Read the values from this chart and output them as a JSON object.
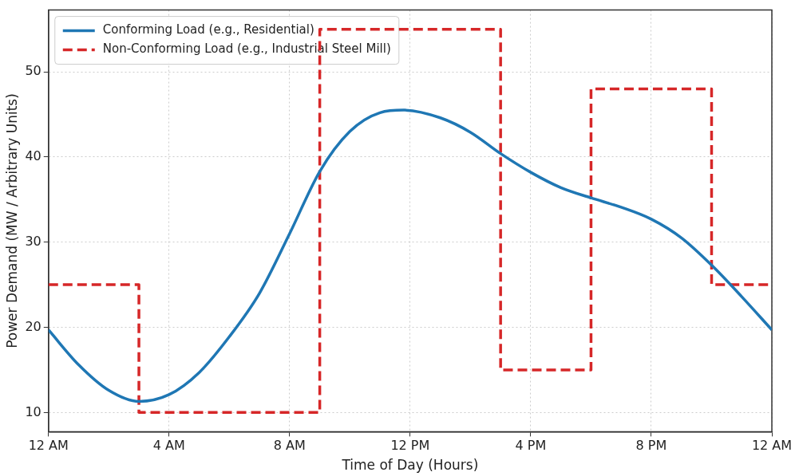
{
  "chart_data": {
    "type": "line",
    "xlabel": "Time of Day (Hours)",
    "ylabel": "Power Demand (MW / Arbitrary Units)",
    "xlim": [
      "--01-01T00:00",
      "--01-02T00:00"
    ],
    "xticks": [
      {
        "value": "--01-01T00:00",
        "label": "12 AM"
      },
      {
        "value": "--01-01T04:00",
        "label": "4 AM"
      },
      {
        "value": "--01-01T08:00",
        "label": "8 AM"
      },
      {
        "value": "--01-01T12:00",
        "label": "12 PM"
      },
      {
        "value": "--01-01T16:00",
        "label": "4 PM"
      },
      {
        "value": "--01-01T20:00",
        "label": "8 PM"
      },
      {
        "value": "--01-02T00:00",
        "label": "12 AM"
      }
    ],
    "ylim": [
      7.75,
      57.25
    ],
    "yticks": [
      10,
      20,
      30,
      40,
      50
    ],
    "grid": true,
    "legend": "top left",
    "series": [
      {
        "name": "Conforming Load (e.g., Residential)",
        "color": "#1f77b4",
        "type": "line",
        "line_style": "solid",
        "x": [
          "--01-01T00:00",
          "--01-01T01:00",
          "--01-01T02:00",
          "--01-01T03:00",
          "--01-01T04:00",
          "--01-01T05:00",
          "--01-01T06:00",
          "--01-01T07:00",
          "--01-01T08:00",
          "--01-01T09:00",
          "--01-01T10:00",
          "--01-01T11:00",
          "--01-01T11:48",
          "--01-01T13:00",
          "--01-01T14:00",
          "--01-01T15:00",
          "--01-01T16:00",
          "--01-01T17:00",
          "--01-01T18:00",
          "--01-01T19:00",
          "--01-01T20:00",
          "--01-01T21:00",
          "--01-01T22:00",
          "--01-01T23:00",
          "--01-02T00:00"
        ],
        "values": [
          19.7,
          15.6,
          12.6,
          11.3,
          12.1,
          14.7,
          18.9,
          24,
          31,
          38.3,
          43,
          45.2,
          45.5,
          44.6,
          42.9,
          40.4,
          38.2,
          36.4,
          35.2,
          34.1,
          32.7,
          30.5,
          27.3,
          23.6,
          19.7
        ]
      },
      {
        "name": "Non-Conforming Load (e.g., Industrial Steel Mill)",
        "color": "#d62728",
        "type": "step",
        "line_style": "dashed",
        "x": [
          "--01-01T00:00",
          "--01-01T03:00",
          "--01-01T09:00",
          "--01-01T15:00",
          "--01-01T18:00",
          "--01-01T22:00",
          "--01-02T00:00"
        ],
        "values": [
          25,
          10,
          55,
          15,
          48,
          25,
          25
        ]
      }
    ]
  }
}
